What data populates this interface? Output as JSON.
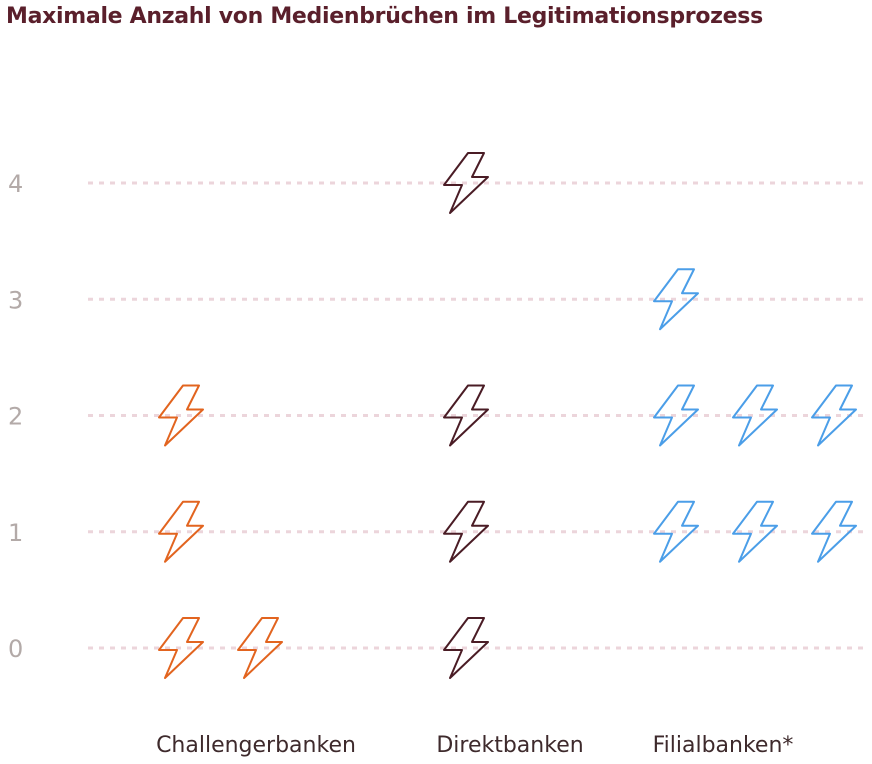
{
  "chart_data": {
    "type": "pictogram",
    "title": "Maximale Anzahl von Medienbrüchen im Legitimationsprozess",
    "xlabel": "",
    "ylabel": "",
    "y_ticks": [
      "0",
      "1",
      "2",
      "3",
      "4"
    ],
    "ylim": [
      0,
      4
    ],
    "grid": true,
    "icon": "lightning-bolt-icon",
    "categories": [
      "Challengerbanken",
      "Direktbanken",
      "Filialbanken*"
    ],
    "counts": [
      [
        2,
        1,
        1,
        0,
        0
      ],
      [
        1,
        1,
        1,
        0,
        1
      ],
      [
        0,
        3,
        3,
        1,
        0
      ]
    ],
    "colors": [
      "#e2641f",
      "#4a1c25",
      "#4b9ee8"
    ]
  }
}
